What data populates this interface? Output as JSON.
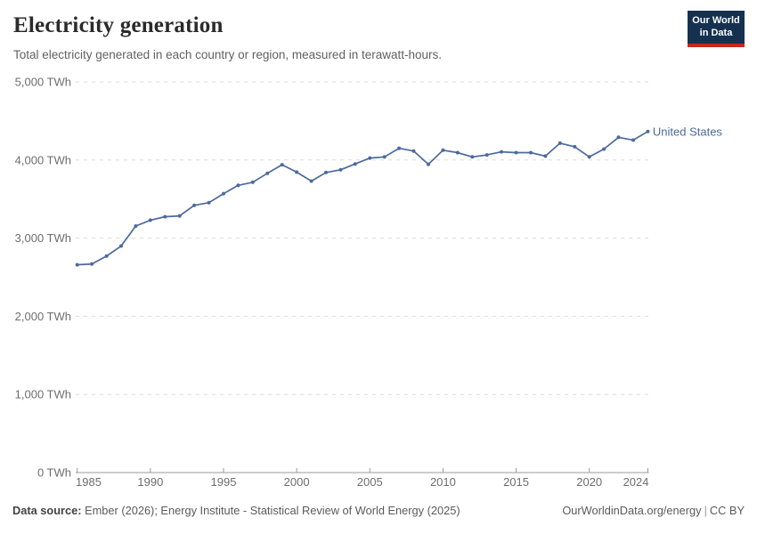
{
  "header": {
    "title": "Electricity generation",
    "subtitle": "Total electricity generated in each country or region, measured in terawatt-hours.",
    "logo": {
      "line1": "Our World",
      "line2": "in Data"
    }
  },
  "chart_data": {
    "type": "line",
    "title": "Electricity generation",
    "xlabel": "",
    "ylabel": "",
    "x": [
      1985,
      1986,
      1987,
      1988,
      1989,
      1990,
      1991,
      1992,
      1993,
      1994,
      1995,
      1996,
      1997,
      1998,
      1999,
      2000,
      2001,
      2002,
      2003,
      2004,
      2005,
      2006,
      2007,
      2008,
      2009,
      2010,
      2011,
      2012,
      2013,
      2014,
      2015,
      2016,
      2017,
      2018,
      2019,
      2020,
      2021,
      2022,
      2023,
      2024
    ],
    "series": [
      {
        "name": "United States",
        "color": "#4C6A9C",
        "values": [
          2660,
          2670,
          2770,
          2900,
          3155,
          3230,
          3275,
          3285,
          3420,
          3455,
          3570,
          3675,
          3715,
          3830,
          3940,
          3845,
          3730,
          3840,
          3875,
          3950,
          4025,
          4040,
          4150,
          4115,
          3945,
          4125,
          4095,
          4040,
          4065,
          4105,
          4095,
          4095,
          4050,
          4215,
          4170,
          4040,
          4140,
          4290,
          4255,
          4365
        ]
      }
    ],
    "x_ticks": [
      1985,
      1990,
      1995,
      2000,
      2005,
      2010,
      2015,
      2020,
      2024
    ],
    "y_ticks": [
      0,
      1000,
      2000,
      3000,
      4000,
      5000
    ],
    "y_tick_suffix": " TWh",
    "xlim": [
      1985,
      2024
    ],
    "ylim": [
      0,
      5000
    ],
    "grid": "horizontal-dashed",
    "legend_position": "end-of-line"
  },
  "footer": {
    "datasource_bold": "Data source:",
    "datasource": " Ember (2026); Energy Institute - Statistical Review of World Energy (2025)",
    "link": "OurWorldinData.org/energy",
    "divider": "|",
    "license": "CC BY"
  },
  "colors": {
    "series_blue": "#4C6A9C",
    "logo_navy": "#15314f",
    "logo_red": "#c5281c",
    "gridline": "#dcdcdc",
    "axis": "#9a9a9a",
    "tick_label": "#6e6e6e"
  }
}
